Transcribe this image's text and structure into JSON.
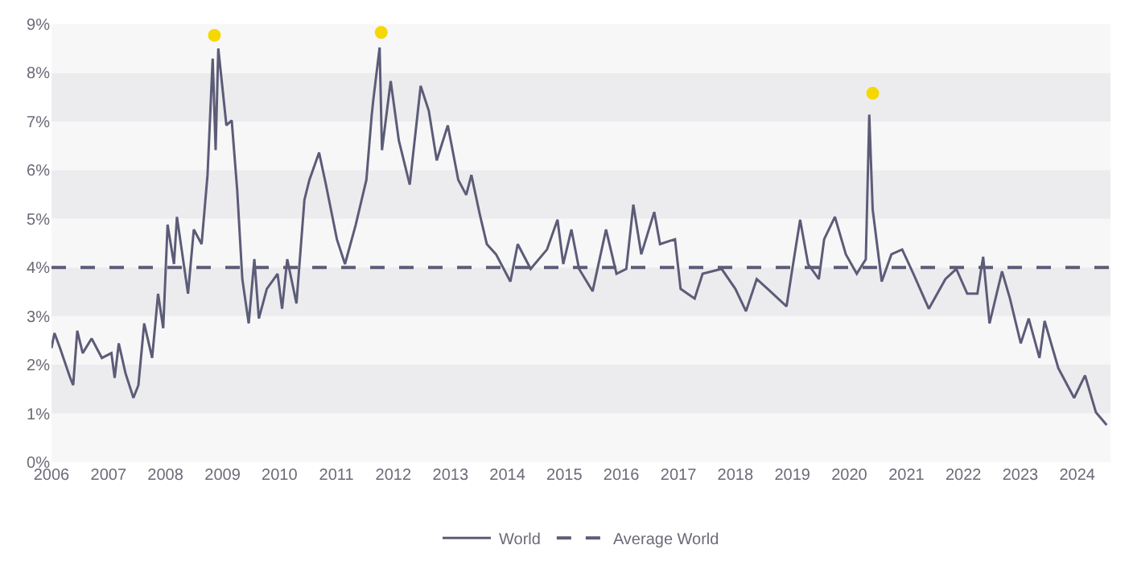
{
  "chart_data": {
    "type": "line",
    "xlim": [
      "2006-01-01",
      "2024-08-01"
    ],
    "xticks": [
      "2006",
      "2007",
      "2008",
      "2009",
      "2010",
      "2011",
      "2012",
      "2013",
      "2014",
      "2015",
      "2016",
      "2017",
      "2018",
      "2019",
      "2020",
      "2021",
      "2022",
      "2023",
      "2024"
    ],
    "ylim": [
      0,
      9
    ],
    "yticks": [
      {
        "value": 0,
        "label": "0%"
      },
      {
        "value": 1,
        "label": "1%"
      },
      {
        "value": 2,
        "label": "2%"
      },
      {
        "value": 3,
        "label": "3%"
      },
      {
        "value": 4,
        "label": "4%"
      },
      {
        "value": 5,
        "label": "5%"
      },
      {
        "value": 6,
        "label": "6%"
      },
      {
        "value": 7,
        "label": "7%"
      },
      {
        "value": 8,
        "label": "8%"
      },
      {
        "value": 9,
        "label": "9%"
      }
    ],
    "grid": false,
    "legend": "bottom",
    "bands": [
      {
        "axis": "y",
        "from": 0,
        "to": 1,
        "color": "#f7f7f8"
      },
      {
        "axis": "y",
        "from": 1,
        "to": 2,
        "color": "#ececef"
      },
      {
        "axis": "y",
        "from": 2,
        "to": 3,
        "color": "#f7f7f8"
      },
      {
        "axis": "y",
        "from": 3,
        "to": 4,
        "color": "#ececef"
      },
      {
        "axis": "y",
        "from": 4,
        "to": 5,
        "color": "#f7f7f8"
      },
      {
        "axis": "y",
        "from": 5,
        "to": 6,
        "color": "#ececef"
      },
      {
        "axis": "y",
        "from": 6,
        "to": 7,
        "color": "#f7f7f8"
      },
      {
        "axis": "y",
        "from": 7,
        "to": 8,
        "color": "#ececef"
      },
      {
        "axis": "y",
        "from": 8,
        "to": 9,
        "color": "#f7f7f8"
      }
    ],
    "series": [
      {
        "name": "World",
        "color": "#5c5c78",
        "line_style": "solid",
        "marker": "none",
        "x": [
          "2006-01-01",
          "2006-01-20",
          "2006-02-25",
          "2006-05-01",
          "2006-05-20",
          "2006-06-15",
          "2006-07-20",
          "2006-09-15",
          "2006-11-20",
          "2007-01-20",
          "2007-02-10",
          "2007-03-08",
          "2007-04-20",
          "2007-06-10",
          "2007-07-12",
          "2007-08-18",
          "2007-10-08",
          "2007-11-15",
          "2007-12-18",
          "2008-01-15",
          "2008-02-25",
          "2008-03-15",
          "2008-05-25",
          "2008-07-01",
          "2008-08-20",
          "2008-09-27",
          "2008-10-30",
          "2008-11-18",
          "2008-12-05",
          "2009-01-26",
          "2009-03-01",
          "2009-04-05",
          "2009-05-08",
          "2009-06-18",
          "2009-07-24",
          "2009-08-22",
          "2009-10-12",
          "2009-12-20",
          "2010-01-18",
          "2010-02-20",
          "2010-04-20",
          "2010-06-10",
          "2010-07-12",
          "2010-09-12",
          "2010-10-26",
          "2011-01-04",
          "2011-02-25",
          "2011-05-05",
          "2011-07-12",
          "2011-08-15",
          "2011-08-25",
          "2011-10-05",
          "2011-10-20",
          "2011-12-15",
          "2012-02-05",
          "2012-04-15",
          "2012-06-24",
          "2012-08-15",
          "2012-10-05",
          "2012-12-15",
          "2013-02-20",
          "2013-04-12",
          "2013-05-15",
          "2013-07-08",
          "2013-08-22",
          "2013-10-20",
          "2014-01-20",
          "2014-03-08",
          "2014-05-30",
          "2014-09-12",
          "2014-11-18",
          "2014-12-25",
          "2015-02-15",
          "2015-04-05",
          "2015-07-01",
          "2015-09-25",
          "2015-12-01",
          "2016-02-02",
          "2016-03-18",
          "2016-05-08",
          "2016-07-30",
          "2016-09-05",
          "2016-12-10",
          "2017-01-15",
          "2017-04-15",
          "2017-06-05",
          "2017-10-05",
          "2018-01-01",
          "2018-03-10",
          "2018-05-18",
          "2018-07-27",
          "2018-11-25",
          "2019-01-01",
          "2019-02-20",
          "2019-04-12",
          "2019-06-20",
          "2019-07-24",
          "2019-10-01",
          "2019-12-10",
          "2020-02-18",
          "2020-04-16",
          "2020-05-08",
          "2020-05-30",
          "2020-07-27",
          "2020-09-27",
          "2020-12-05",
          "2021-02-15",
          "2021-05-25",
          "2021-09-08",
          "2021-11-17",
          "2022-01-26",
          "2022-04-01",
          "2022-05-08",
          "2022-06-18",
          "2022-09-06",
          "2022-10-27",
          "2023-01-04",
          "2023-02-24",
          "2023-05-04",
          "2023-06-06",
          "2023-09-02",
          "2023-12-12",
          "2024-02-20",
          "2024-04-30",
          "2024-07-08"
        ],
        "values": [
          2.34,
          2.65,
          2.34,
          1.73,
          1.58,
          2.7,
          2.24,
          2.54,
          2.14,
          2.24,
          1.73,
          2.44,
          1.83,
          1.32,
          1.58,
          2.85,
          2.14,
          3.46,
          2.75,
          4.88,
          4.07,
          5.04,
          3.46,
          4.78,
          4.48,
          5.9,
          8.29,
          6.41,
          8.5,
          6.92,
          7.02,
          5.6,
          3.76,
          2.85,
          4.17,
          2.95,
          3.56,
          3.87,
          3.15,
          4.17,
          3.26,
          5.39,
          5.8,
          6.36,
          5.7,
          4.58,
          4.07,
          4.88,
          5.8,
          7.12,
          7.43,
          8.52,
          6.41,
          7.83,
          6.61,
          5.7,
          7.73,
          7.22,
          6.2,
          6.92,
          5.8,
          5.49,
          5.9,
          5.09,
          4.48,
          4.27,
          3.71,
          4.48,
          3.97,
          4.37,
          4.98,
          4.07,
          4.78,
          3.97,
          3.51,
          4.78,
          3.87,
          3.97,
          5.29,
          4.27,
          5.14,
          4.48,
          4.58,
          3.56,
          3.36,
          3.87,
          3.97,
          3.56,
          3.1,
          3.76,
          3.56,
          3.2,
          3.97,
          4.98,
          4.07,
          3.76,
          4.58,
          5.04,
          4.27,
          3.87,
          4.17,
          7.14,
          5.19,
          3.71,
          4.27,
          4.37,
          3.87,
          3.15,
          3.76,
          3.97,
          3.46,
          3.46,
          4.22,
          2.85,
          3.92,
          3.36,
          2.44,
          2.95,
          2.14,
          2.9,
          1.93,
          1.32,
          1.78,
          1.02,
          0.76
        ]
      },
      {
        "name": "Average World",
        "color": "#5c5c78",
        "line_style": "dashed",
        "marker": "none",
        "x": [
          "2006-01-01",
          "2024-08-01"
        ],
        "values": [
          4,
          4
        ]
      },
      {
        "type": "scatter",
        "color": "#f5d800",
        "marker": "circle",
        "x": [
          "2008-11-10",
          "2011-10-15",
          "2020-05-30"
        ],
        "values": [
          8.77,
          8.83,
          7.58
        ]
      }
    ]
  }
}
